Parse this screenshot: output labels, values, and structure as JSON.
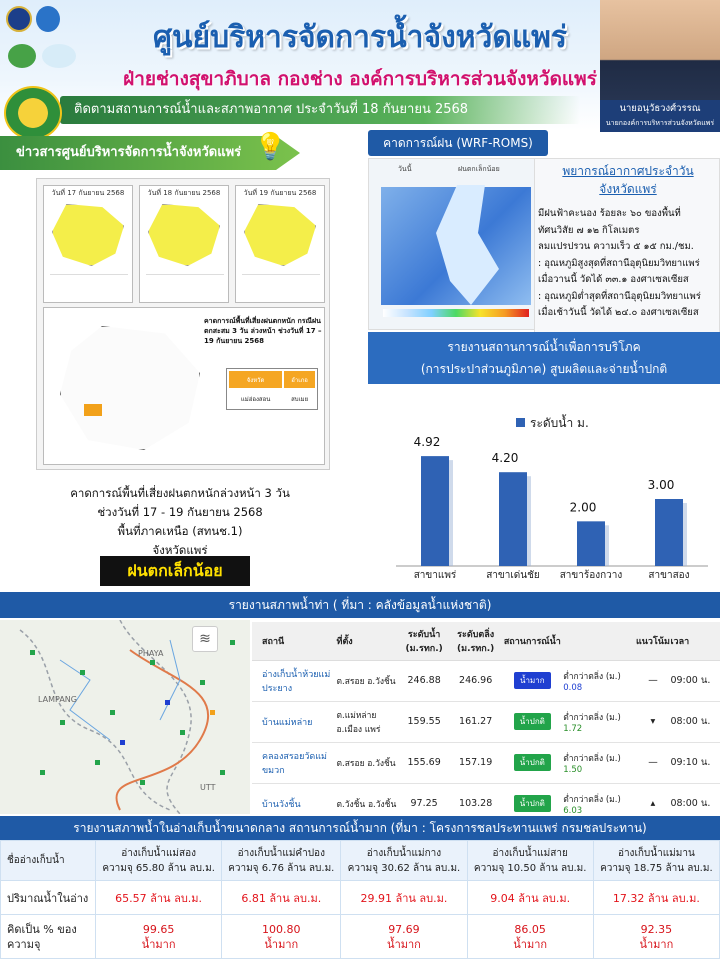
{
  "header": {
    "title": "ศูนย์บริหารจัดการน้ำจังหวัดแพร่",
    "subtitle": "ฝ่ายช่างสุขาภิบาล กองช่าง องค์การบริหารส่วนจังหวัดแพร่",
    "monitor_line": "ติดตามสถานการณ์น้ำและสภาพอากาศ ประจำวันที่ 18 กันยายน 2568",
    "person_name": "นายอนุวัธวงศ์วรรณ",
    "person_role": "นายกองค์การบริหารส่วนจังหวัดแพร่"
  },
  "news": {
    "title": "ข่าวสารศูนย์บริหารจัดการน้ำจังหวัดแพร่",
    "maps": [
      {
        "date": "วันที่ 17 กันยายน 2568"
      },
      {
        "date": "วันที่ 18 กันยายน 2568"
      },
      {
        "date": "วันที่ 19 กันยายน 2568"
      }
    ],
    "big_map_title": "คาดการณ์พื้นที่เสี่ยงฝนตกหนัก กรณีฝนตกสะสม 3 วัน ล่วงหน้า ช่วงวันที่ 17 – 19 กันยายน 2568",
    "big_map_table": {
      "col1": "จังหวัด",
      "col2": "อำเภอ",
      "val1": "แม่ฮ่องสอน",
      "val2": "สบเมย"
    },
    "desc_line1": "คาดการณ์พื้นที่เสี่ยงฝนตกหนักล่วงหน้า 3 วัน",
    "desc_line2": "ช่วงวันที่ 17 - 19 กันยายน 2568",
    "desc_line3": "พื้นที่ภาคเหนือ (สทนช.1)",
    "desc_line4": "จังหวัดแพร่",
    "badge": "ฝนตกเล็กน้อย"
  },
  "forecast": {
    "title": "คาดการณ์ฝน (WRF-ROMS)",
    "tab1": "วันนี้",
    "tab2": "ฝนตกเล็กน้อย"
  },
  "weather": {
    "title1": "พยากรณ์อากาศประจำวัน",
    "title2": "จังหวัดแพร่",
    "line1": "มีฝนฟ้าคะนอง ร้อยละ ๖๐ ของพื้นที่",
    "line2": "ทัศนวิสัย ๗ ๑๒ กิโลเมตร",
    "line3": "ลมแปรปรวน ความเร็ว ๕ ๑๕ กม./ชม.",
    "line4": ": อุณหภูมิสูงสุดที่สถานีอุตุนิยมวิทยาแพร่",
    "line5": "เมื่อวานนี้ วัดได้ ๓๓.๑ องศาเซลเซียส",
    "line6": ": อุณหภูมิต่ำสุดที่สถานีอุตุนิยมวิทยาแพร่",
    "line7": "เมื่อเช้าวันนี้ วัดได้ ๒๔.๐ องศาเซลเซียส"
  },
  "water_production": {
    "title1": "รายงานสถานการณ์น้ำเพื่อการบริโภค",
    "title2": "(การประปาส่วนภูมิภาค) สูบผลิตและจ่ายน้ำปกติ"
  },
  "chart_data": {
    "type": "bar",
    "categories": [
      "สาขาแพร่",
      "สาขาเด่นชัย",
      "สาขาร้องกวาง",
      "สาขาสอง"
    ],
    "series": [
      {
        "name": "ระดับน้ำ ม.",
        "values": [
          4.92,
          4.2,
          2.0,
          3.0
        ]
      }
    ],
    "value_labels": [
      "4.92",
      "4.20",
      "2.00",
      "3.00"
    ],
    "ylim": [
      0,
      6
    ],
    "legend": "top",
    "bar_color": "#2f62b4"
  },
  "river": {
    "title": "รายงานสภาพน้ำท่า ( ที่มา : คลังข้อมูลน้ำแห่งชาติ)",
    "headers": [
      "สถานี",
      "ที่ตั้ง",
      "ระดับน้ำ (ม.รทก.)",
      "ระดับตลิ่ง (ม.รทก.)",
      "สถานการณ์น้ำ",
      "",
      "แนวโน้ม",
      "เวลา"
    ],
    "map_labels": [
      "PHAYA",
      "LAMPANG",
      "UTT"
    ],
    "rows": [
      {
        "station": "อ่างเก็บน้ำห้วยแม่ประยาง",
        "location": "ต.สรอย อ.วังชิ้น",
        "level": "246.88",
        "bank": "246.96",
        "status": "น้ำมาก",
        "status_color": "#1f3fd1",
        "diff_label": "ต่ำกว่าตลิ่ง (ม.)",
        "diff": "0.08",
        "diff_color": "#1f3fd1",
        "trend": "—",
        "time": "09:00 น."
      },
      {
        "station": "บ้านแม่หล่าย",
        "location": "ต.แม่หล่าย อ.เมือง แพร่",
        "level": "159.55",
        "bank": "161.27",
        "status": "น้ำปกติ",
        "status_color": "#22a44a",
        "diff_label": "ต่ำกว่าตลิ่ง (ม.)",
        "diff": "1.72",
        "diff_color": "#2a8f2a",
        "trend": "▾",
        "time": "08:00 น."
      },
      {
        "station": "คลองสรอยวัดแม่ขมวก",
        "location": "ต.สรอย อ.วังชิ้น",
        "level": "155.69",
        "bank": "157.19",
        "status": "น้ำปกติ",
        "status_color": "#22a44a",
        "diff_label": "ต่ำกว่าตลิ่ง (ม.)",
        "diff": "1.50",
        "diff_color": "#2a8f2a",
        "trend": "—",
        "time": "09:10 น."
      },
      {
        "station": "บ้านวังชิ้น",
        "location": "ต.วังชิ้น อ.วังชิ้น",
        "level": "97.25",
        "bank": "103.28",
        "status": "น้ำปกติ",
        "status_color": "#22a44a",
        "diff_label": "ต่ำกว่าตลิ่ง (ม.)",
        "diff": "6.03",
        "diff_color": "#2a8f2a",
        "trend": "▴",
        "time": "08:00 น."
      }
    ]
  },
  "reservoirs": {
    "title": "รายงานสภาพน้ำในอ่างเก็บน้ำขนาดกลาง สถานการณ์น้ำมาก (ที่มา : โครงการชลประทานแพร่ กรมชลประทาน)",
    "row_name": "ชื่ออ่างเก็บน้ำ",
    "row_volume": "ปริมาณน้ำในอ่าง",
    "row_percent": "คิดเป็น % ของความจุ",
    "items": [
      {
        "name": "อ่างเก็บน้ำแม่สอง",
        "capacity": "ความจุ 65.80 ล้าน ลบ.ม.",
        "volume": "65.57 ล้าน ลบ.ม.",
        "percent": "99.65",
        "status": "น้ำมาก"
      },
      {
        "name": "อ่างเก็บน้ำแม่คำปอง",
        "capacity": "ความจุ 6.76 ล้าน ลบ.ม.",
        "volume": "6.81 ล้าน ลบ.ม.",
        "percent": "100.80",
        "status": "น้ำมาก"
      },
      {
        "name": "อ่างเก็บน้ำแม่กาง",
        "capacity": "ความจุ 30.62 ล้าน ลบ.ม.",
        "volume": "29.91 ล้าน ลบ.ม.",
        "percent": "97.69",
        "status": "น้ำมาก"
      },
      {
        "name": "อ่างเก็บน้ำแม่สาย",
        "capacity": "ความจุ 10.50 ล้าน ลบ.ม.",
        "volume": "9.04 ล้าน ลบ.ม.",
        "percent": "86.05",
        "status": "น้ำมาก"
      },
      {
        "name": "อ่างเก็บน้ำแม่มาน",
        "capacity": "ความจุ 18.75 ล้าน ลบ.ม.",
        "volume": "17.32 ล้าน ลบ.ม.",
        "percent": "92.35",
        "status": "น้ำมาก"
      }
    ]
  }
}
